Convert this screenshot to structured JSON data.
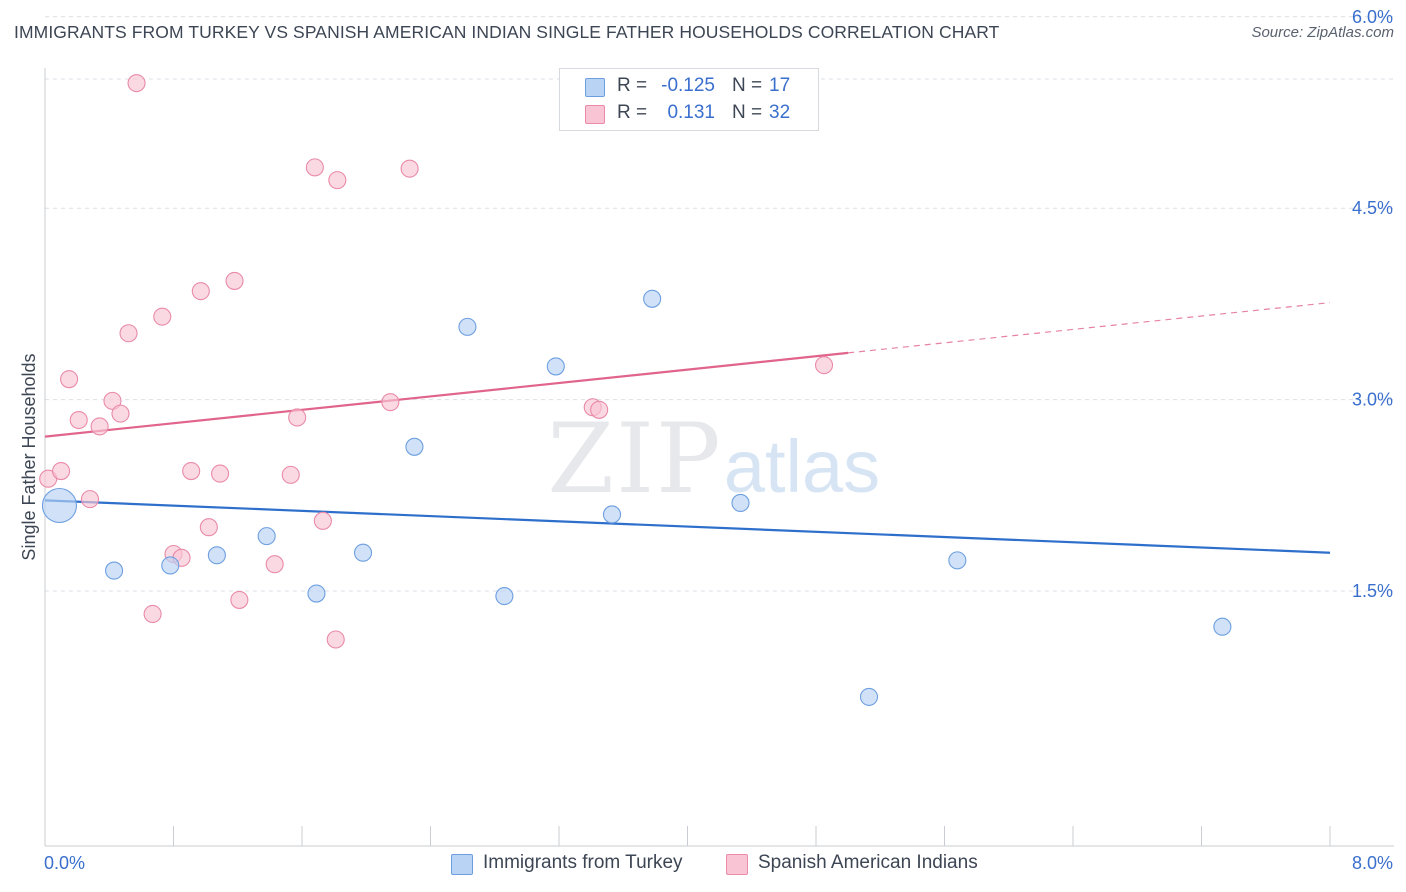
{
  "header": {
    "title": "IMMIGRANTS FROM TURKEY VS SPANISH AMERICAN INDIAN SINGLE FATHER HOUSEHOLDS CORRELATION CHART",
    "source": "Source: ZipAtlas.com"
  },
  "watermark": {
    "zip": "ZIP",
    "atlas": "atlas"
  },
  "legend_top": {
    "rows": [
      {
        "r_label": "R =",
        "r_value": "-0.125",
        "n_label": "N =",
        "n_value": "17"
      },
      {
        "r_label": "R =",
        "r_value": "0.131",
        "n_label": "N =",
        "n_value": "32"
      }
    ]
  },
  "legend_bottom": {
    "items": [
      {
        "label": "Immigrants from Turkey"
      },
      {
        "label": "Spanish American Indians"
      }
    ]
  },
  "colors": {
    "blue_fill": "#b9d3f5",
    "blue_stroke": "#6d9fe0",
    "blue_line": "#2d6fcb",
    "pink_fill": "#f9c5d4",
    "pink_stroke": "#e98aa8",
    "pink_line": "#e0648b",
    "axis_label": "#3a6fcd"
  },
  "chart_data": {
    "type": "scatter",
    "title": "IMMIGRANTS FROM TURKEY VS SPANISH AMERICAN INDIAN SINGLE FATHER HOUSEHOLDS CORRELATION CHART",
    "xlabel": "",
    "ylabel": "Single Father Households",
    "xlim": [
      0,
      8
    ],
    "ylim": [
      0,
      6.2
    ],
    "x_tick_labels": [
      "0.0%",
      "8.0%"
    ],
    "y_ticks": [
      1.5,
      3.0,
      4.5,
      6.0
    ],
    "y_tick_labels": [
      "1.5%",
      "3.0%",
      "4.5%",
      "6.0%"
    ],
    "grid": "horizontal-dashed",
    "legend_placement": "bottom",
    "series": [
      {
        "name": "Immigrants from Turkey",
        "color": "blue",
        "r": -0.125,
        "n": 17,
        "trend": {
          "x": [
            0.0,
            8.0
          ],
          "y": [
            2.21,
            1.8
          ],
          "solid_to": 8.0
        },
        "points": [
          {
            "x": 0.09,
            "y": 2.17,
            "large": true
          },
          {
            "x": 0.43,
            "y": 1.66
          },
          {
            "x": 0.78,
            "y": 1.7
          },
          {
            "x": 1.07,
            "y": 1.78
          },
          {
            "x": 1.38,
            "y": 1.93
          },
          {
            "x": 1.69,
            "y": 1.48
          },
          {
            "x": 1.98,
            "y": 1.8
          },
          {
            "x": 2.3,
            "y": 2.63
          },
          {
            "x": 2.63,
            "y": 3.57
          },
          {
            "x": 2.86,
            "y": 1.46
          },
          {
            "x": 3.18,
            "y": 3.26
          },
          {
            "x": 3.53,
            "y": 2.1
          },
          {
            "x": 3.78,
            "y": 3.79
          },
          {
            "x": 4.33,
            "y": 2.19
          },
          {
            "x": 5.13,
            "y": 0.67
          },
          {
            "x": 5.68,
            "y": 1.74
          },
          {
            "x": 7.33,
            "y": 1.22
          }
        ]
      },
      {
        "name": "Spanish American Indians",
        "color": "pink",
        "r": 0.131,
        "n": 32,
        "trend": {
          "x": [
            0.0,
            8.0
          ],
          "y": [
            2.71,
            3.76
          ],
          "solid_to": 5.0
        },
        "points": [
          {
            "x": 0.02,
            "y": 2.38
          },
          {
            "x": 0.1,
            "y": 2.44
          },
          {
            "x": 0.15,
            "y": 3.16
          },
          {
            "x": 0.21,
            "y": 2.84
          },
          {
            "x": 0.28,
            "y": 2.22
          },
          {
            "x": 0.34,
            "y": 2.79
          },
          {
            "x": 0.42,
            "y": 2.99
          },
          {
            "x": 0.47,
            "y": 2.89
          },
          {
            "x": 0.52,
            "y": 3.52
          },
          {
            "x": 0.57,
            "y": 5.48
          },
          {
            "x": 0.67,
            "y": 1.32
          },
          {
            "x": 0.73,
            "y": 3.65
          },
          {
            "x": 0.8,
            "y": 1.79
          },
          {
            "x": 0.85,
            "y": 1.76
          },
          {
            "x": 0.91,
            "y": 2.44
          },
          {
            "x": 0.97,
            "y": 3.85
          },
          {
            "x": 1.02,
            "y": 2.0
          },
          {
            "x": 1.09,
            "y": 2.42
          },
          {
            "x": 1.18,
            "y": 3.93
          },
          {
            "x": 1.21,
            "y": 1.43
          },
          {
            "x": 1.43,
            "y": 1.71
          },
          {
            "x": 1.53,
            "y": 2.41
          },
          {
            "x": 1.57,
            "y": 2.86
          },
          {
            "x": 1.68,
            "y": 4.82
          },
          {
            "x": 1.73,
            "y": 2.05
          },
          {
            "x": 1.81,
            "y": 1.12
          },
          {
            "x": 1.82,
            "y": 4.72
          },
          {
            "x": 2.15,
            "y": 2.98
          },
          {
            "x": 2.27,
            "y": 4.81
          },
          {
            "x": 3.41,
            "y": 2.94
          },
          {
            "x": 3.45,
            "y": 2.92
          },
          {
            "x": 4.85,
            "y": 3.27
          }
        ]
      }
    ]
  }
}
